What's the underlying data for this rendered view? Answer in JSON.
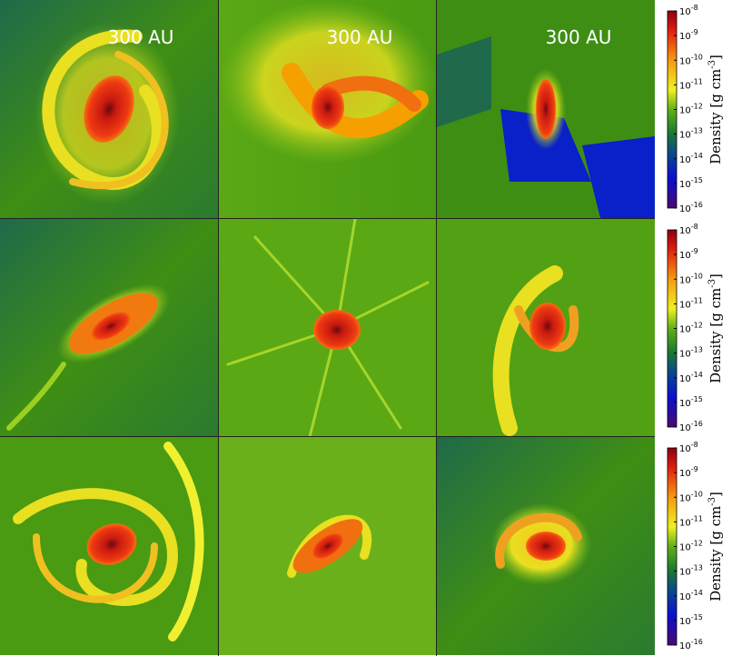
{
  "panels": [
    {
      "scale_label": "300 AU"
    },
    {
      "scale_label": "300 AU"
    },
    {
      "scale_label": "300 AU"
    }
  ],
  "colorbars": [
    {
      "label": "Density [g cm",
      "label_exponent": "-3",
      "label_close": "]",
      "range": [
        1e-08,
        1e-16
      ],
      "ticks": [
        {
          "value": 1e-08,
          "base": "10",
          "exponent": "-8"
        },
        {
          "value": 1e-09,
          "base": "10",
          "exponent": "-9"
        },
        {
          "value": 1e-10,
          "base": "10",
          "exponent": "-10"
        },
        {
          "value": 1e-11,
          "base": "10",
          "exponent": "-11"
        },
        {
          "value": 1e-12,
          "base": "10",
          "exponent": "-12"
        },
        {
          "value": 1e-13,
          "base": "10",
          "exponent": "-13"
        },
        {
          "value": 1e-14,
          "base": "10",
          "exponent": "-14"
        },
        {
          "value": 1e-15,
          "base": "10",
          "exponent": "-15"
        },
        {
          "value": 1e-16,
          "base": "10",
          "exponent": "-16"
        }
      ]
    },
    {
      "label": "Density [g cm",
      "label_exponent": "-3",
      "label_close": "]",
      "range": [
        1e-08,
        1e-16
      ],
      "ticks": [
        {
          "value": 1e-08,
          "base": "10",
          "exponent": "-8"
        },
        {
          "value": 1e-09,
          "base": "10",
          "exponent": "-9"
        },
        {
          "value": 1e-10,
          "base": "10",
          "exponent": "-10"
        },
        {
          "value": 1e-11,
          "base": "10",
          "exponent": "-11"
        },
        {
          "value": 1e-12,
          "base": "10",
          "exponent": "-12"
        },
        {
          "value": 1e-13,
          "base": "10",
          "exponent": "-13"
        },
        {
          "value": 1e-14,
          "base": "10",
          "exponent": "-14"
        },
        {
          "value": 1e-15,
          "base": "10",
          "exponent": "-15"
        },
        {
          "value": 1e-16,
          "base": "10",
          "exponent": "-16"
        }
      ]
    },
    {
      "label": "Density [g cm",
      "label_exponent": "-3",
      "label_close": "]",
      "range": [
        1e-08,
        1e-16
      ],
      "ticks": [
        {
          "value": 1e-08,
          "base": "10",
          "exponent": "-8"
        },
        {
          "value": 1e-09,
          "base": "10",
          "exponent": "-9"
        },
        {
          "value": 1e-10,
          "base": "10",
          "exponent": "-10"
        },
        {
          "value": 1e-11,
          "base": "10",
          "exponent": "-11"
        },
        {
          "value": 1e-12,
          "base": "10",
          "exponent": "-12"
        },
        {
          "value": 1e-13,
          "base": "10",
          "exponent": "-13"
        },
        {
          "value": 1e-14,
          "base": "10",
          "exponent": "-14"
        },
        {
          "value": 1e-15,
          "base": "10",
          "exponent": "-15"
        },
        {
          "value": 1e-16,
          "base": "10",
          "exponent": "-16"
        }
      ]
    }
  ]
}
